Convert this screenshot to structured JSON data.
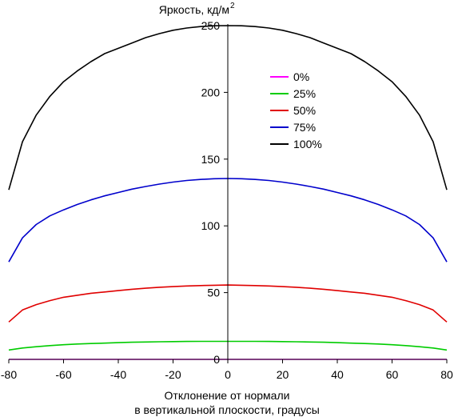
{
  "chart_data": {
    "type": "line",
    "title": "",
    "ylabel": "Яркость, кд/м",
    "ylabel_sup": "2",
    "xlabel_line1": "Отклонение от нормали",
    "xlabel_line2": "в вертикальной плоскости, градусы",
    "xlim": [
      -80,
      80
    ],
    "ylim": [
      0,
      250
    ],
    "xticks": [
      -80,
      -60,
      -40,
      -20,
      0,
      20,
      40,
      60,
      80
    ],
    "yticks": [
      0,
      50,
      100,
      150,
      200,
      250
    ],
    "grid": false,
    "legend_position": "top-right",
    "x": [
      -80,
      -75,
      -70,
      -65,
      -60,
      -55,
      -50,
      -45,
      -40,
      -35,
      -30,
      -25,
      -20,
      -15,
      -10,
      -5,
      0,
      5,
      10,
      15,
      20,
      25,
      30,
      35,
      40,
      45,
      50,
      55,
      60,
      65,
      70,
      75,
      80
    ],
    "series": [
      {
        "name": "0%",
        "color": "#ff00ff",
        "values": [
          0,
          0,
          0,
          0,
          0,
          0,
          0,
          0,
          0,
          0,
          0,
          0,
          0,
          0,
          0,
          0,
          0,
          0,
          0,
          0,
          0,
          0,
          0,
          0,
          0,
          0,
          0,
          0,
          0,
          0,
          0,
          0,
          0
        ]
      },
      {
        "name": "25%",
        "color": "#00cc00",
        "values": [
          7,
          8.5,
          9.5,
          10.3,
          11,
          11.5,
          11.9,
          12.2,
          12.5,
          12.8,
          13,
          13.2,
          13.3,
          13.4,
          13.5,
          13.5,
          13.5,
          13.5,
          13.5,
          13.4,
          13.3,
          13.2,
          13,
          12.8,
          12.5,
          12.2,
          11.9,
          11.5,
          11,
          10.3,
          9.5,
          8.5,
          7
        ]
      },
      {
        "name": "50%",
        "color": "#e00000",
        "values": [
          28,
          37,
          41,
          44,
          46.5,
          48,
          49.5,
          50.5,
          51.5,
          52.5,
          53.3,
          54,
          54.5,
          55,
          55.3,
          55.5,
          55.7,
          55.5,
          55.3,
          55,
          54.5,
          54,
          53.3,
          52.5,
          51.5,
          50.5,
          49.5,
          48,
          46.5,
          44,
          41,
          37,
          28
        ]
      },
      {
        "name": "75%",
        "color": "#0000cc",
        "values": [
          73,
          91,
          101,
          107.5,
          112,
          116,
          119.5,
          122.5,
          125,
          127.5,
          129.5,
          131.3,
          132.8,
          134,
          134.8,
          135.3,
          135.5,
          135.3,
          134.8,
          134,
          132.8,
          131.3,
          129.5,
          127.5,
          125,
          122.5,
          119.5,
          116,
          112,
          107.5,
          101,
          91,
          73
        ]
      },
      {
        "name": "100%",
        "color": "#000000",
        "values": [
          127,
          163,
          183,
          197,
          208,
          216,
          223,
          229,
          233,
          237,
          241,
          244,
          246.5,
          248.2,
          249.3,
          249.9,
          250,
          249.9,
          249.3,
          248.2,
          246.5,
          244,
          241,
          237,
          233,
          229,
          223,
          216,
          208,
          197,
          183,
          163,
          127
        ]
      }
    ]
  }
}
